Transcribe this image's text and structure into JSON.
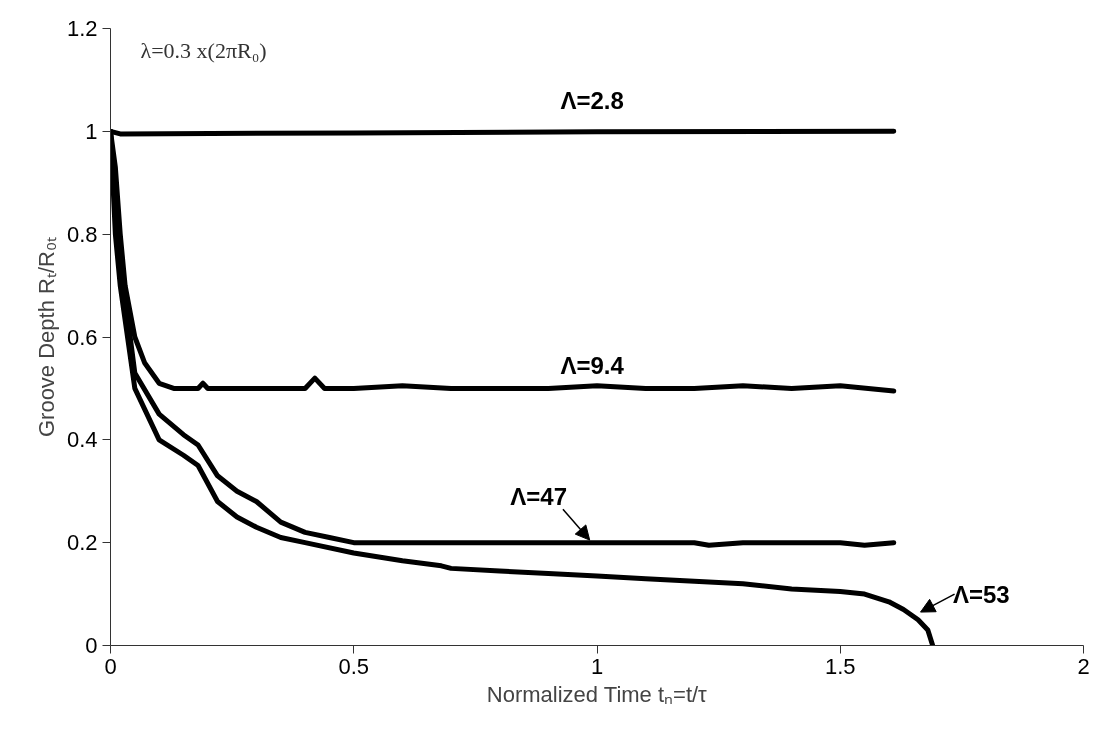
{
  "chart_data": {
    "type": "line",
    "xlabel": "Normalized Time tₙ=t/τ",
    "ylabel": "Groove Depth Rₜ/R₀ₜ",
    "annotations": [
      "λ=0.3 x(2πR₀)"
    ],
    "xlim": [
      0,
      2
    ],
    "xticks": [
      0,
      0.5,
      1,
      1.5,
      2
    ],
    "ylim": [
      0,
      1.2
    ],
    "yticks": [
      0,
      0.2,
      0.4,
      0.6,
      0.8,
      1,
      1.2
    ],
    "grid": false,
    "marker": "none",
    "line_style": "solid",
    "series": [
      {
        "name": "Λ=2.8",
        "color": "#000000",
        "x": [
          0,
          0.02,
          0.5,
          1,
          1.61
        ],
        "values": [
          1,
          0.995,
          0.997,
          0.999,
          1.0
        ]
      },
      {
        "name": "Λ=9.4",
        "color": "#000000",
        "x": [
          0,
          0.01,
          0.02,
          0.03,
          0.05,
          0.07,
          0.1,
          0.13,
          0.18,
          0.19,
          0.2,
          0.25,
          0.3,
          0.35,
          0.4,
          0.42,
          0.44,
          0.5,
          0.6,
          0.7,
          0.8,
          0.9,
          1.0,
          1.1,
          1.2,
          1.3,
          1.4,
          1.5,
          1.61
        ],
        "values": [
          1,
          0.93,
          0.8,
          0.7,
          0.6,
          0.55,
          0.51,
          0.5,
          0.5,
          0.51,
          0.5,
          0.5,
          0.5,
          0.5,
          0.5,
          0.52,
          0.5,
          0.5,
          0.505,
          0.5,
          0.5,
          0.5,
          0.505,
          0.5,
          0.5,
          0.505,
          0.5,
          0.505,
          0.495
        ]
      },
      {
        "name": "Λ=47",
        "color": "#000000",
        "x": [
          0,
          0.01,
          0.02,
          0.05,
          0.1,
          0.15,
          0.18,
          0.22,
          0.26,
          0.3,
          0.35,
          0.4,
          0.45,
          0.5,
          0.7,
          0.9,
          1.0,
          1.2,
          1.23,
          1.3,
          1.5,
          1.55,
          1.61
        ],
        "values": [
          1,
          0.85,
          0.75,
          0.53,
          0.45,
          0.41,
          0.39,
          0.33,
          0.3,
          0.28,
          0.24,
          0.22,
          0.21,
          0.2,
          0.2,
          0.2,
          0.2,
          0.2,
          0.195,
          0.2,
          0.2,
          0.195,
          0.2
        ]
      },
      {
        "name": "Λ=53",
        "color": "#000000",
        "x": [
          0,
          0.01,
          0.02,
          0.05,
          0.1,
          0.15,
          0.18,
          0.22,
          0.26,
          0.3,
          0.35,
          0.4,
          0.5,
          0.6,
          0.68,
          0.7,
          0.8,
          0.9,
          1.0,
          1.1,
          1.2,
          1.3,
          1.4,
          1.5,
          1.55,
          1.6,
          1.63,
          1.66,
          1.68,
          1.69
        ],
        "values": [
          1,
          0.8,
          0.7,
          0.5,
          0.4,
          0.37,
          0.35,
          0.28,
          0.25,
          0.23,
          0.21,
          0.2,
          0.18,
          0.165,
          0.155,
          0.15,
          0.145,
          0.14,
          0.135,
          0.13,
          0.125,
          0.12,
          0.11,
          0.105,
          0.1,
          0.085,
          0.07,
          0.05,
          0.03,
          0.0
        ]
      }
    ]
  }
}
